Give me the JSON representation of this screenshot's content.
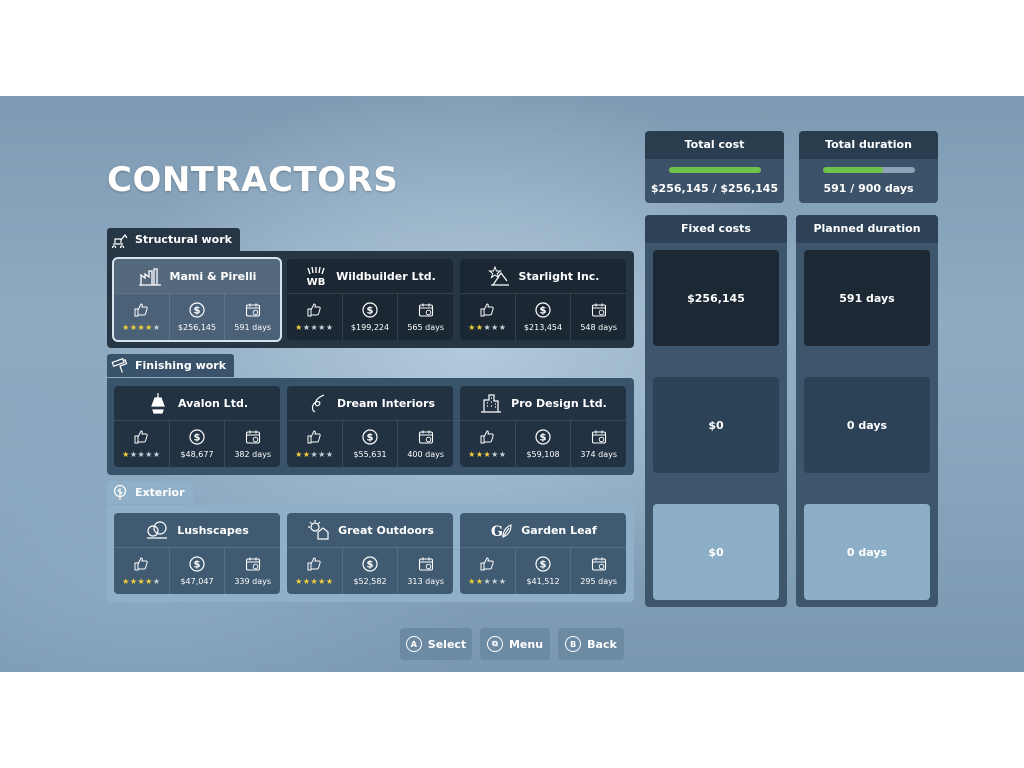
{
  "title": "CONTRACTORS",
  "sections": [
    {
      "name": "Structural work",
      "icon": "excavator-icon",
      "contractors": [
        {
          "name": "Mami & Pirelli",
          "logo": "factory-logo-icon",
          "rating": 4,
          "cost": "$256,145",
          "duration": "591 days",
          "selected": true
        },
        {
          "name": "Wildbuilder Ltd.",
          "logo": "wb-logo-icon",
          "rating": 1,
          "cost": "$199,224",
          "duration": "565 days"
        },
        {
          "name": "Starlight Inc.",
          "logo": "star-crane-logo-icon",
          "rating": 2,
          "cost": "$213,454",
          "duration": "548 days"
        }
      ]
    },
    {
      "name": "Finishing work",
      "icon": "paint-roller-icon",
      "contractors": [
        {
          "name": "Avalon Ltd.",
          "logo": "lamp-logo-icon",
          "rating": 1,
          "cost": "$48,677",
          "duration": "382 days"
        },
        {
          "name": "Dream Interiors",
          "logo": "swirl-logo-icon",
          "rating": 2,
          "cost": "$55,631",
          "duration": "400 days"
        },
        {
          "name": "Pro Design Ltd.",
          "logo": "building-logo-icon",
          "rating": 3,
          "cost": "$59,108",
          "duration": "374 days"
        }
      ]
    },
    {
      "name": "Exterior",
      "icon": "tree-icon",
      "contractors": [
        {
          "name": "Lushscapes",
          "logo": "bushes-logo-icon",
          "rating": 4,
          "cost": "$47,047",
          "duration": "339 days"
        },
        {
          "name": "Great Outdoors",
          "logo": "sun-house-logo-icon",
          "rating": 5,
          "cost": "$52,582",
          "duration": "313 days"
        },
        {
          "name": "Garden Leaf",
          "logo": "gl-leaf-logo-icon",
          "rating": 2,
          "cost": "$41,512",
          "duration": "295 days"
        }
      ]
    }
  ],
  "totals": {
    "cost_label": "Total cost",
    "cost_value": "$256,145 / $256,145",
    "cost_progress": 1.0,
    "duration_label": "Total duration",
    "duration_value": "591 / 900 days",
    "duration_progress": 0.657
  },
  "fixed_costs": {
    "label": "Fixed costs",
    "values": [
      "$256,145",
      "$0",
      "$0"
    ]
  },
  "planned_duration": {
    "label": "Planned duration",
    "values": [
      "591 days",
      "0 days",
      "0 days"
    ]
  },
  "footer": {
    "select": {
      "key": "A",
      "label": "Select"
    },
    "menu": {
      "key": "⧉",
      "label": "Menu"
    },
    "back": {
      "key": "B",
      "label": "Back"
    }
  },
  "colors": {
    "progress": "#6cc24a",
    "star": "#f3d03c"
  }
}
